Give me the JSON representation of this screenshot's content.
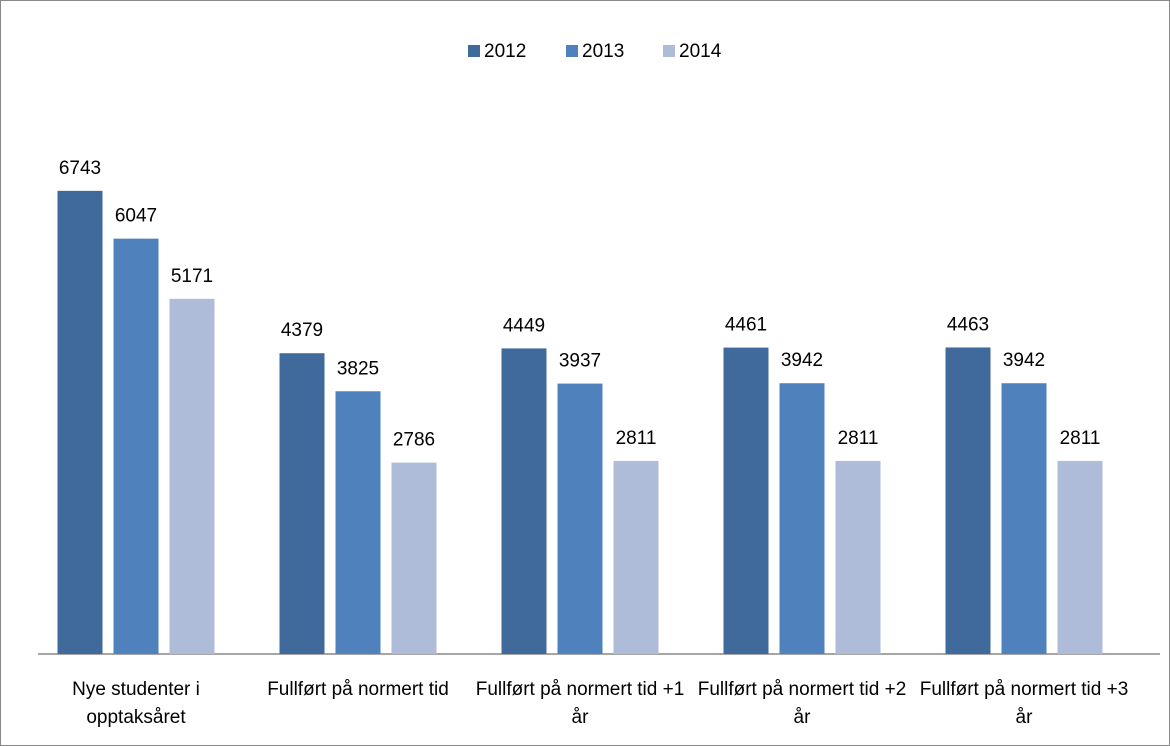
{
  "chart_data": {
    "type": "bar",
    "categories": [
      "Nye studenter i opptaksåret",
      "Fullført på normert tid",
      "Fullført på normert tid +1 år",
      "Fullført på normert tid +2 år",
      "Fullført på normert tid +3 år"
    ],
    "series": [
      {
        "name": "2012",
        "color": "#416a9c",
        "values": [
          6743,
          4379,
          4449,
          4461,
          4463
        ]
      },
      {
        "name": "2013",
        "color": "#4f81bd",
        "values": [
          6047,
          3825,
          3937,
          3942,
          3942
        ]
      },
      {
        "name": "2014",
        "color": "#aebbd9",
        "values": [
          5171,
          2786,
          2811,
          2811,
          2811
        ]
      }
    ],
    "ylim": [
      0,
      8000
    ],
    "legend": "top"
  }
}
